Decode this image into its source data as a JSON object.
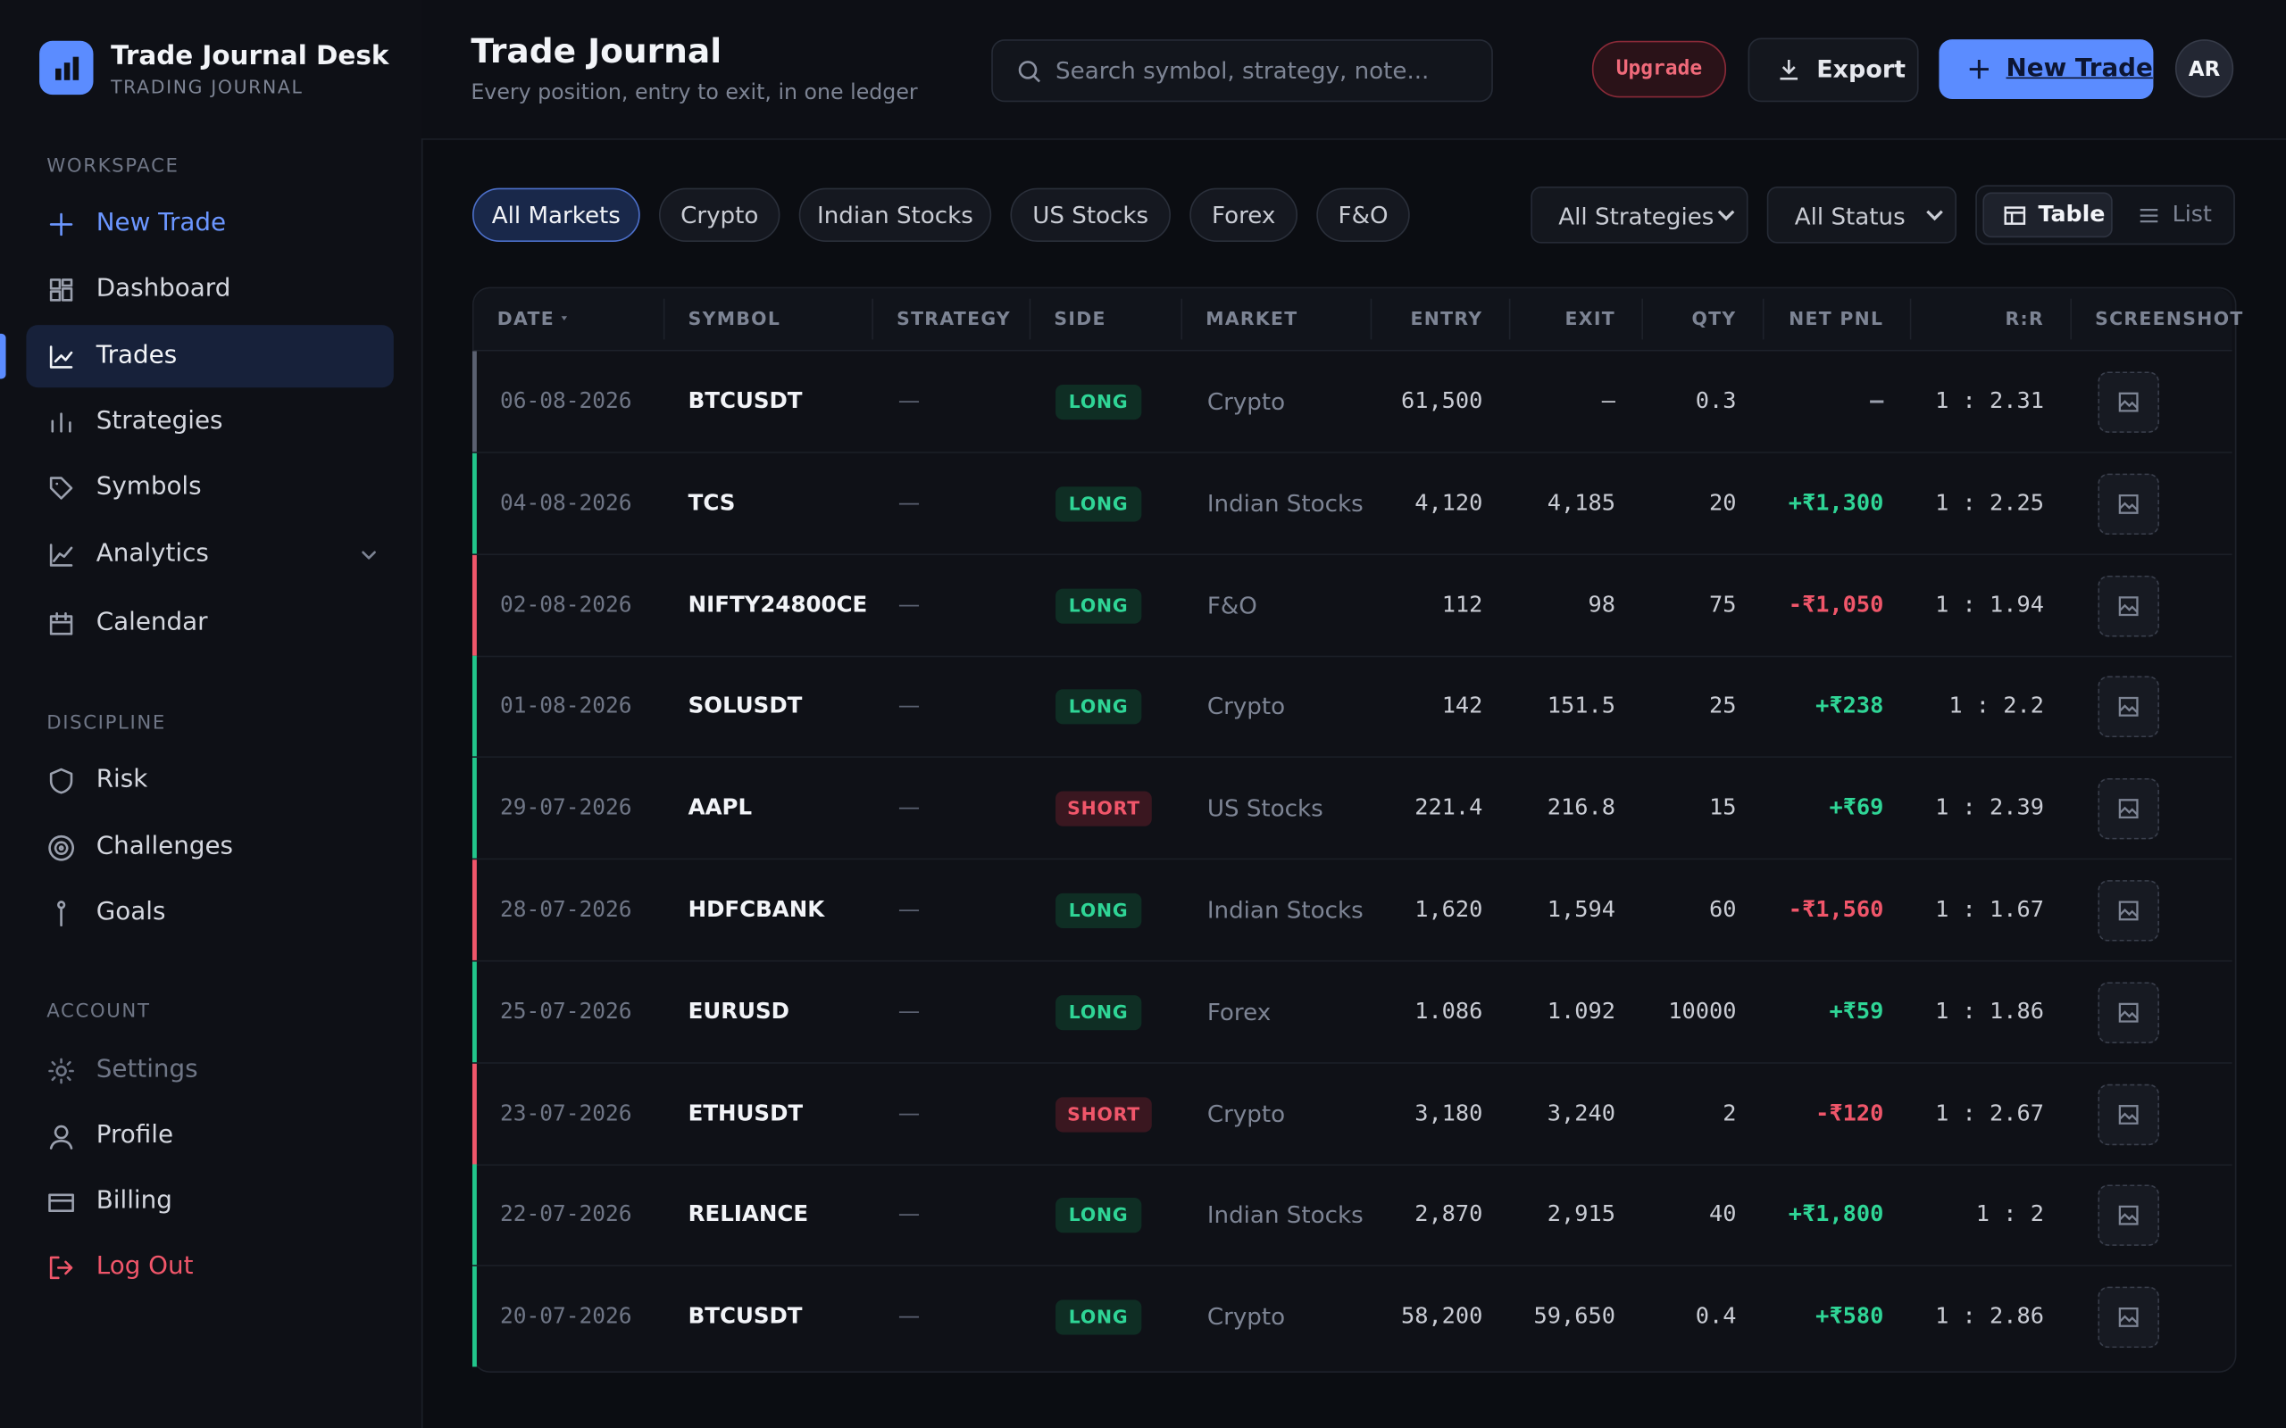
{
  "brand": {
    "name": "Trade Journal Desk",
    "tagline": "TRADING JOURNAL"
  },
  "sidebar": {
    "sections": [
      {
        "title": "WORKSPACE",
        "items": [
          "New Trade",
          "Dashboard",
          "Trades",
          "Strategies",
          "Symbols",
          "Analytics",
          "Calendar"
        ]
      },
      {
        "title": "DISCIPLINE",
        "items": [
          "Risk",
          "Challenges",
          "Goals"
        ]
      },
      {
        "title": "ACCOUNT",
        "items": [
          "Settings",
          "Profile",
          "Billing",
          "Log Out"
        ]
      }
    ]
  },
  "header": {
    "title": "Trade Journal",
    "subtitle": "Every position, entry to exit, in one ledger",
    "search_placeholder": "Search symbol, strategy, note...",
    "upgrade": "Upgrade",
    "export": "Export",
    "new_trade": "New Trade",
    "avatar": "AR"
  },
  "filters": {
    "markets": [
      "All Markets",
      "Crypto",
      "Indian Stocks",
      "US Stocks",
      "Forex",
      "F&O"
    ],
    "strategy": "All Strategies",
    "status": "All Status",
    "views": [
      "Table",
      "List"
    ]
  },
  "table": {
    "columns": [
      "DATE",
      "SYMBOL",
      "STRATEGY",
      "SIDE",
      "MARKET",
      "ENTRY",
      "EXIT",
      "QTY",
      "NET PNL",
      "R:R",
      "SCREENSHOT"
    ],
    "rows": [
      [
        "06-08-2026",
        "BTCUSDT",
        "—",
        "LONG",
        "Crypto",
        "61,500",
        "–",
        "0.3",
        "–",
        "1 : 2.31"
      ],
      [
        "04-08-2026",
        "TCS",
        "—",
        "LONG",
        "Indian Stocks",
        "4,120",
        "4,185",
        "20",
        "+₹1,300",
        "1 : 2.25"
      ],
      [
        "02-08-2026",
        "NIFTY24800CE",
        "—",
        "LONG",
        "F&O",
        "112",
        "98",
        "75",
        "-₹1,050",
        "1 : 1.94"
      ],
      [
        "01-08-2026",
        "SOLUSDT",
        "—",
        "LONG",
        "Crypto",
        "142",
        "151.5",
        "25",
        "+₹238",
        "1 : 2.2"
      ],
      [
        "29-07-2026",
        "AAPL",
        "—",
        "SHORT",
        "US Stocks",
        "221.4",
        "216.8",
        "15",
        "+₹69",
        "1 : 2.39"
      ],
      [
        "28-07-2026",
        "HDFCBANK",
        "—",
        "LONG",
        "Indian Stocks",
        "1,620",
        "1,594",
        "60",
        "-₹1,560",
        "1 : 1.67"
      ],
      [
        "25-07-2026",
        "EURUSD",
        "—",
        "LONG",
        "Forex",
        "1.086",
        "1.092",
        "10000",
        "+₹59",
        "1 : 1.86"
      ],
      [
        "23-07-2026",
        "ETHUSDT",
        "—",
        "SHORT",
        "Crypto",
        "3,180",
        "3,240",
        "2",
        "-₹120",
        "1 : 2.67"
      ],
      [
        "22-07-2026",
        "RELIANCE",
        "—",
        "LONG",
        "Indian Stocks",
        "2,870",
        "2,915",
        "40",
        "+₹1,800",
        "1 : 2"
      ],
      [
        "20-07-2026",
        "BTCUSDT",
        "—",
        "LONG",
        "Crypto",
        "58,200",
        "59,650",
        "0.4",
        "+₹580",
        "1 : 2.86"
      ]
    ]
  }
}
